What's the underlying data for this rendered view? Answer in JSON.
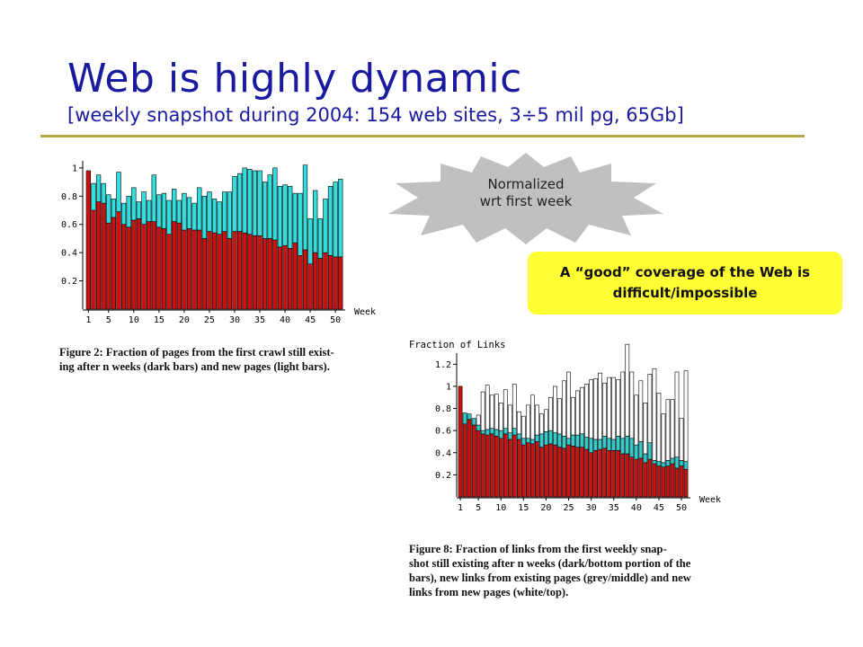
{
  "slide": {
    "title": "Web is highly dynamic",
    "subtitle": "[weekly snapshot during 2004: 154 web sites, 3÷5 mil pg, 65Gb]",
    "colors": {
      "title": "#1a1aa0",
      "rule": "#b3a842",
      "callout": "#ffff33",
      "burst": "#c0c0c0"
    }
  },
  "burst": {
    "line1": "Normalized",
    "line2": "wrt first week"
  },
  "callout": {
    "line1": "A “good” coverage of the Web is",
    "line2": "difficult/impossible"
  },
  "captions": {
    "fig2_line1": "Figure 2: Fraction of pages from the first crawl still exist-",
    "fig2_line2": "ing after n weeks (dark bars) and new pages (light bars).",
    "fig8_line1": "Figure 8:  Fraction of links from the first weekly snap-",
    "fig8_line2": "shot still existing after n weeks (dark/bottom portion of the",
    "fig8_line3": "bars), new links from existing pages (grey/middle) and new",
    "fig8_line4": "links from new pages (white/top)."
  },
  "chart_data": [
    {
      "type": "bar",
      "stacked": true,
      "title": "",
      "xlabel": "Week",
      "ylabel": "",
      "ylim": [
        0,
        1.05
      ],
      "xticks": [
        1,
        5,
        10,
        15,
        20,
        25,
        30,
        35,
        40,
        45,
        50
      ],
      "yticks": [
        0.2,
        0.4,
        0.6,
        0.8,
        1
      ],
      "x": [
        1,
        2,
        3,
        4,
        5,
        6,
        7,
        8,
        9,
        10,
        11,
        12,
        13,
        14,
        15,
        16,
        17,
        18,
        19,
        20,
        21,
        22,
        23,
        24,
        25,
        26,
        27,
        28,
        29,
        30,
        31,
        32,
        33,
        34,
        35,
        36,
        37,
        38,
        39,
        40,
        41,
        42,
        43,
        44,
        45,
        46,
        47,
        48,
        49,
        50,
        51
      ],
      "series": [
        {
          "name": "",
          "color": "#cc1111",
          "values": [
            0.98,
            0.7,
            0.76,
            0.75,
            0.61,
            0.65,
            0.69,
            0.6,
            0.58,
            0.63,
            0.64,
            0.6,
            0.62,
            0.62,
            0.58,
            0.57,
            0.53,
            0.62,
            0.61,
            0.56,
            0.57,
            0.56,
            0.56,
            0.5,
            0.55,
            0.54,
            0.53,
            0.55,
            0.5,
            0.55,
            0.55,
            0.54,
            0.53,
            0.52,
            0.52,
            0.5,
            0.5,
            0.49,
            0.44,
            0.45,
            0.43,
            0.47,
            0.38,
            0.42,
            0.32,
            0.4,
            0.36,
            0.4,
            0.38,
            0.37,
            0.37
          ]
        },
        {
          "name": "",
          "color": "#33dddd",
          "values": [
            0,
            0.19,
            0.19,
            0.14,
            0.2,
            0.13,
            0.28,
            0.15,
            0.22,
            0.23,
            0.12,
            0.23,
            0.15,
            0.33,
            0.23,
            0.25,
            0.24,
            0.23,
            0.16,
            0.26,
            0.22,
            0.19,
            0.3,
            0.3,
            0.28,
            0.24,
            0.23,
            0.28,
            0.33,
            0.39,
            0.41,
            0.46,
            0.46,
            0.46,
            0.46,
            0.4,
            0.45,
            0.51,
            0.43,
            0.43,
            0.44,
            0.35,
            0.44,
            0.6,
            0.32,
            0.44,
            0.28,
            0.38,
            0.49,
            0.53,
            0.55
          ]
        }
      ]
    },
    {
      "type": "bar",
      "stacked": true,
      "title": "Fraction of Links",
      "xlabel": "Week",
      "ylabel": "Fraction of Links",
      "ylim": [
        0,
        1.3
      ],
      "xticks": [
        1,
        5,
        10,
        15,
        20,
        25,
        30,
        35,
        40,
        45,
        50
      ],
      "yticks": [
        0.2,
        0.4,
        0.6,
        0.8,
        1,
        1.2
      ],
      "x": [
        1,
        2,
        3,
        4,
        5,
        6,
        7,
        8,
        9,
        10,
        11,
        12,
        13,
        14,
        15,
        16,
        17,
        18,
        19,
        20,
        21,
        22,
        23,
        24,
        25,
        26,
        27,
        28,
        29,
        30,
        31,
        32,
        33,
        34,
        35,
        36,
        37,
        38,
        39,
        40,
        41,
        42,
        43,
        44,
        45,
        46,
        47,
        48,
        49,
        50,
        51
      ],
      "series": [
        {
          "name": "",
          "color": "#cc1111",
          "values": [
            1.0,
            0.66,
            0.7,
            0.65,
            0.6,
            0.57,
            0.56,
            0.57,
            0.55,
            0.53,
            0.57,
            0.52,
            0.56,
            0.52,
            0.47,
            0.49,
            0.48,
            0.5,
            0.45,
            0.47,
            0.48,
            0.47,
            0.45,
            0.44,
            0.47,
            0.46,
            0.45,
            0.45,
            0.43,
            0.4,
            0.42,
            0.43,
            0.44,
            0.42,
            0.42,
            0.42,
            0.39,
            0.39,
            0.36,
            0.34,
            0.35,
            0.31,
            0.34,
            0.3,
            0.28,
            0.27,
            0.28,
            0.3,
            0.26,
            0.28,
            0.25
          ]
        },
        {
          "name": "",
          "color": "#33cccc",
          "values": [
            0,
            0.1,
            0.05,
            0.06,
            0.05,
            0.03,
            0.05,
            0.05,
            0.06,
            0.07,
            0.05,
            0.06,
            0.06,
            0.05,
            0.06,
            0.04,
            0.04,
            0.06,
            0.12,
            0.12,
            0.12,
            0.11,
            0.12,
            0.11,
            0.06,
            0.1,
            0.11,
            0.12,
            0.11,
            0.13,
            0.1,
            0.09,
            0.11,
            0.11,
            0.1,
            0.13,
            0.14,
            0.16,
            0.17,
            0.13,
            0.15,
            0.08,
            0.15,
            0.03,
            0.04,
            0.04,
            0.05,
            0.05,
            0.1,
            0.05,
            0.07
          ]
        },
        {
          "name": "",
          "color": "#ffffff",
          "values": [
            0,
            0,
            0,
            0,
            0.09,
            0.35,
            0.4,
            0.3,
            0.32,
            0.25,
            0.35,
            0.25,
            0.4,
            0.2,
            0.2,
            0.3,
            0.4,
            0.27,
            0.18,
            0.2,
            0.3,
            0.42,
            0.32,
            0.5,
            0.6,
            0.34,
            0.4,
            0.42,
            0.48,
            0.53,
            0.55,
            0.6,
            0.48,
            0.55,
            0.56,
            0.51,
            0.6,
            0.83,
            0.6,
            0.45,
            0.55,
            0.46,
            0.62,
            0.83,
            0.62,
            0.44,
            0.55,
            0.53,
            0.77,
            0.38,
            0.82
          ]
        }
      ]
    }
  ]
}
